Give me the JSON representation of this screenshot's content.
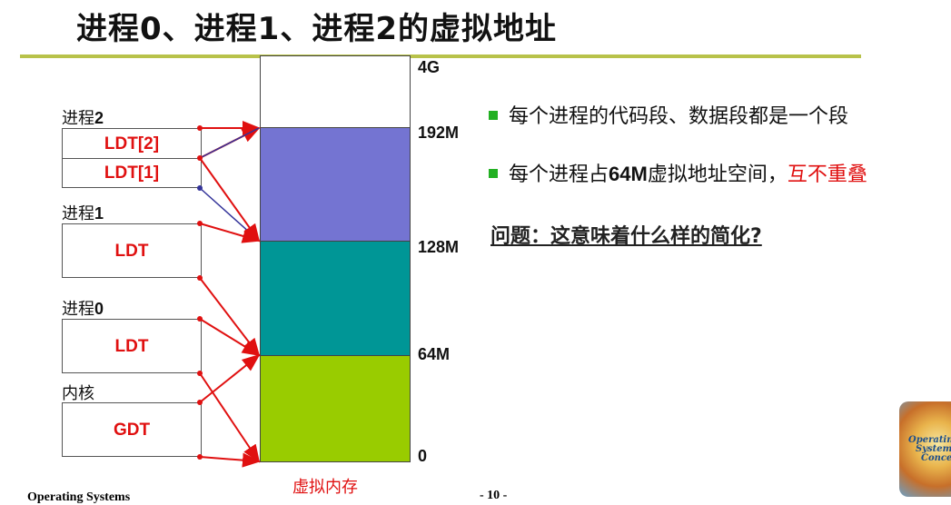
{
  "title": {
    "part1": "进程",
    "n0": "0",
    "sep1": "、进程",
    "n1": "1",
    "sep2": "、进程",
    "n2": "2",
    "part2": "的虚拟地址"
  },
  "processes": {
    "p2": {
      "label_prefix": "进程",
      "label_num": "2",
      "entries": [
        "LDT[2]",
        "LDT[1]"
      ]
    },
    "p1": {
      "label_prefix": "进程",
      "label_num": "1",
      "entry": "LDT"
    },
    "p0": {
      "label_prefix": "进程",
      "label_num": "0",
      "entry": "LDT"
    },
    "kernel": {
      "label": "内核",
      "entry": "GDT"
    }
  },
  "memory": {
    "caption": "虚拟内存",
    "addresses": [
      "4G",
      "192M",
      "128M",
      "64M",
      "0"
    ],
    "colors": {
      "top": "#ffffff",
      "p2": "#7474d2",
      "p1": "#009696",
      "p0": "#99cc00",
      "arrow": "#e01010",
      "link": "#333399"
    }
  },
  "bullets": {
    "b1": "每个进程的代码段、数据段都是一个段",
    "b2_pre": "每个进程占",
    "b2_num": "64M",
    "b2_mid": "虚拟地址空间，",
    "b2_red": "互不重叠",
    "question": "问题：这意味着什么样的简化?"
  },
  "footer": {
    "left": "Operating Systems",
    "page": "- 10 -"
  },
  "logo_text": [
    "Operating",
    "Systems",
    "Concepts"
  ]
}
